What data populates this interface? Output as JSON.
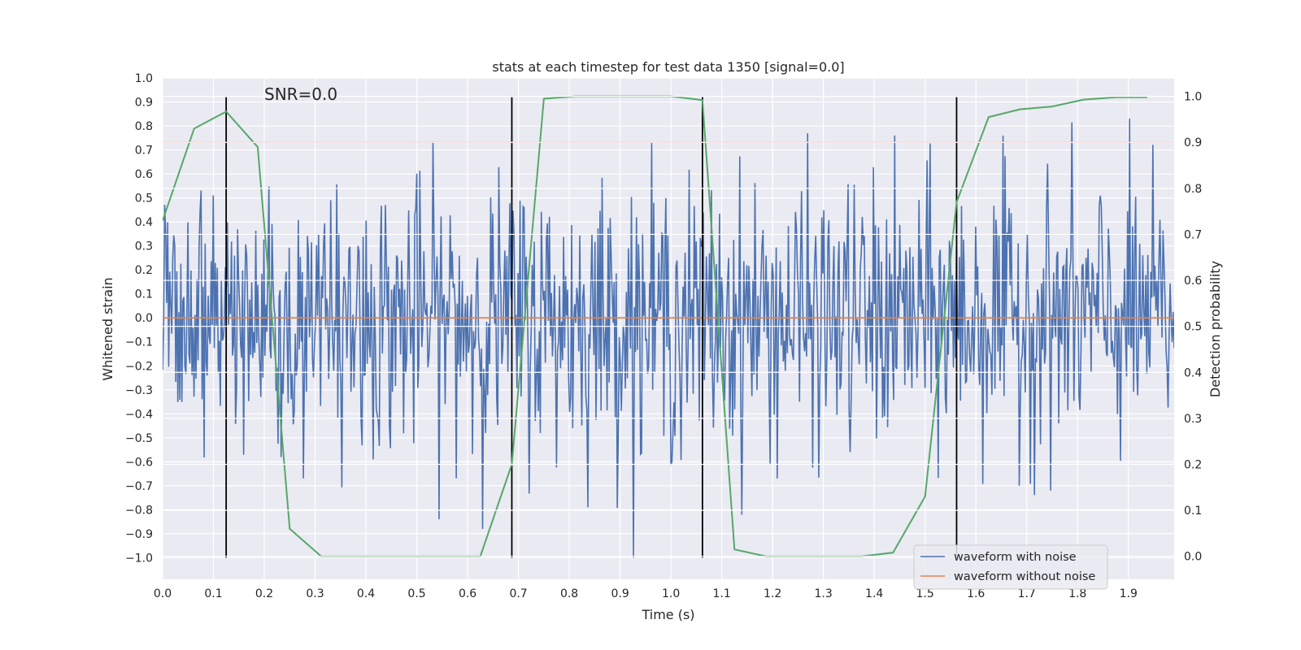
{
  "chart_data": {
    "type": "line",
    "title": "stats at each timestep for test data 1350 [signal=0.0]",
    "xlabel": "Time (s)",
    "ylabel": "Whitened strain",
    "y2label": "Detection probability",
    "xlim": [
      0.0,
      1.99
    ],
    "ylim": [
      -1.09,
      1.0
    ],
    "y2lim": [
      -0.05,
      1.04
    ],
    "x_ticks": [
      0.0,
      0.1,
      0.2,
      0.3,
      0.4,
      0.5,
      0.6,
      0.7,
      0.8,
      0.9,
      1.0,
      1.1,
      1.2,
      1.3,
      1.4,
      1.5,
      1.6,
      1.7,
      1.8,
      1.9
    ],
    "x_tick_labels": [
      "0.0",
      "0.1",
      "0.2",
      "0.3",
      "0.4",
      "0.5",
      "0.6",
      "0.7",
      "0.8",
      "0.9",
      "1.0",
      "1.1",
      "1.2",
      "1.3",
      "1.4",
      "1.5",
      "1.6",
      "1.7",
      "1.8",
      "1.9"
    ],
    "y_ticks": [
      1.0,
      0.9,
      0.8,
      0.7,
      0.6,
      0.5,
      0.4,
      0.3,
      0.2,
      0.1,
      0.0,
      -0.1,
      -0.2,
      -0.3,
      -0.4,
      -0.5,
      -0.6,
      -0.7,
      -0.8,
      -0.9,
      -1.0
    ],
    "y_tick_labels": [
      "1.0",
      "0.9",
      "0.8",
      "0.7",
      "0.6",
      "0.5",
      "0.4",
      "0.3",
      "0.2",
      "0.1",
      "0.0",
      "−0.1",
      "−0.2",
      "−0.3",
      "−0.4",
      "−0.5",
      "−0.6",
      "−0.7",
      "−0.8",
      "−0.9",
      "−1.0"
    ],
    "y2_ticks": [
      1.0,
      0.9,
      0.8,
      0.7,
      0.6,
      0.5,
      0.4,
      0.3,
      0.2,
      0.1,
      0.0
    ],
    "y2_tick_labels": [
      "1.0",
      "0.9",
      "0.8",
      "0.7",
      "0.6",
      "0.5",
      "0.4",
      "0.3",
      "0.2",
      "0.1",
      "0.0"
    ],
    "grid": true,
    "background_color": "#eaeaf2",
    "annotation": "SNR=0.0",
    "legend_position": "lower-right",
    "series": [
      {
        "name": "waveform with noise",
        "color": "#4c72b0",
        "axis": "left",
        "x_range": [
          0.0,
          1.99
        ],
        "samples": 1000,
        "noise_std": 0.28,
        "range": [
          -1.0,
          0.9
        ]
      },
      {
        "name": "waveform without noise",
        "color": "#dd8452",
        "axis": "left",
        "x": [
          0.0,
          1.99
        ],
        "y": [
          0.0,
          0.0
        ]
      },
      {
        "color": "#55a868",
        "axis": "right",
        "x": [
          0.0,
          0.062,
          0.125,
          0.187,
          0.25,
          0.312,
          0.375,
          0.437,
          0.5,
          0.562,
          0.625,
          0.687,
          0.75,
          0.812,
          0.875,
          0.937,
          1.0,
          1.062,
          1.125,
          1.187,
          1.25,
          1.312,
          1.375,
          1.437,
          1.5,
          1.562,
          1.625,
          1.687,
          1.75,
          1.812,
          1.875,
          1.937
        ],
        "y": [
          0.73,
          0.93,
          0.967,
          0.89,
          0.06,
          0.0,
          0.0,
          0.0,
          0.0,
          0.0,
          0.0,
          0.2,
          0.995,
          1.0,
          1.0,
          1.0,
          1.0,
          0.992,
          0.015,
          0.0,
          0.0,
          0.0,
          0.0,
          0.008,
          0.13,
          0.77,
          0.955,
          0.972,
          0.978,
          0.993,
          0.998,
          0.998
        ]
      }
    ],
    "threshold": {
      "axis": "right",
      "value": 0.9,
      "color": "#c44e52"
    },
    "vertical_lines": {
      "x": [
        0.125,
        0.687,
        1.062,
        1.562
      ],
      "color": "#000000",
      "ymin": -1.0,
      "ymax": 0.92
    }
  }
}
